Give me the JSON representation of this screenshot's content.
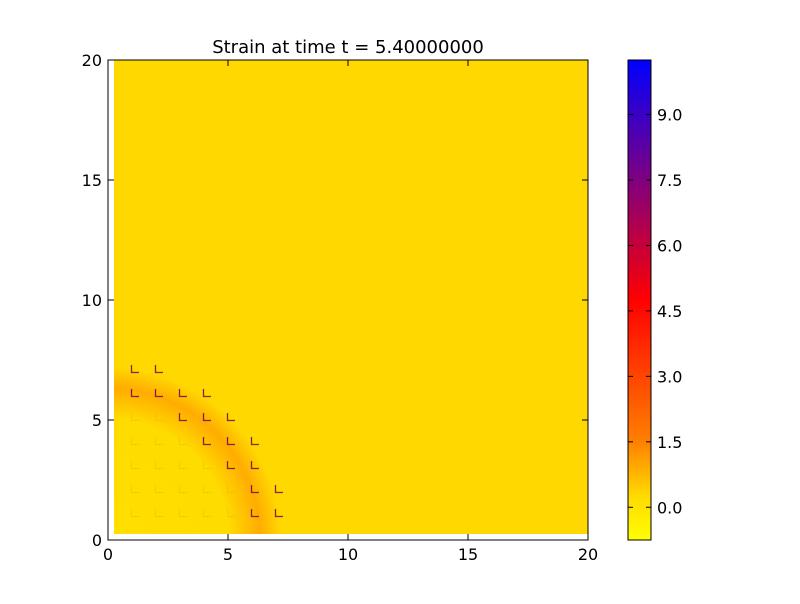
{
  "chart_data": {
    "type": "heatmap",
    "title": "Strain at time t =     5.40000000",
    "xlabel": "",
    "ylabel": "",
    "xlim": [
      0,
      20
    ],
    "ylim": [
      0,
      20
    ],
    "x_ticks": [
      "0",
      "5",
      "10",
      "15",
      "20"
    ],
    "y_ticks": [
      "0",
      "5",
      "10",
      "15",
      "20"
    ],
    "field": {
      "background_value": 0.3,
      "inclusion": {
        "center": [
          0,
          0
        ],
        "radius": 7.2,
        "value": 0.15,
        "rim_value": 0.9
      },
      "data_extent": {
        "x": [
          0.25,
          20
        ],
        "y": [
          0.25,
          20
        ]
      }
    },
    "colorbar": {
      "range": [
        -0.75,
        10.25
      ],
      "tick_labels": [
        "0.0",
        "1.5",
        "3.0",
        "4.5",
        "6.0",
        "7.5",
        "9.0"
      ],
      "colormap": [
        {
          "value": -0.75,
          "color": "#ffff00"
        },
        {
          "value": 0.3,
          "color": "#ffd800"
        },
        {
          "value": 1.5,
          "color": "#ff8000"
        },
        {
          "value": 4.75,
          "color": "#ff0000"
        },
        {
          "value": 10.25,
          "color": "#0000ff"
        }
      ]
    },
    "grid": false,
    "legend": "none"
  }
}
